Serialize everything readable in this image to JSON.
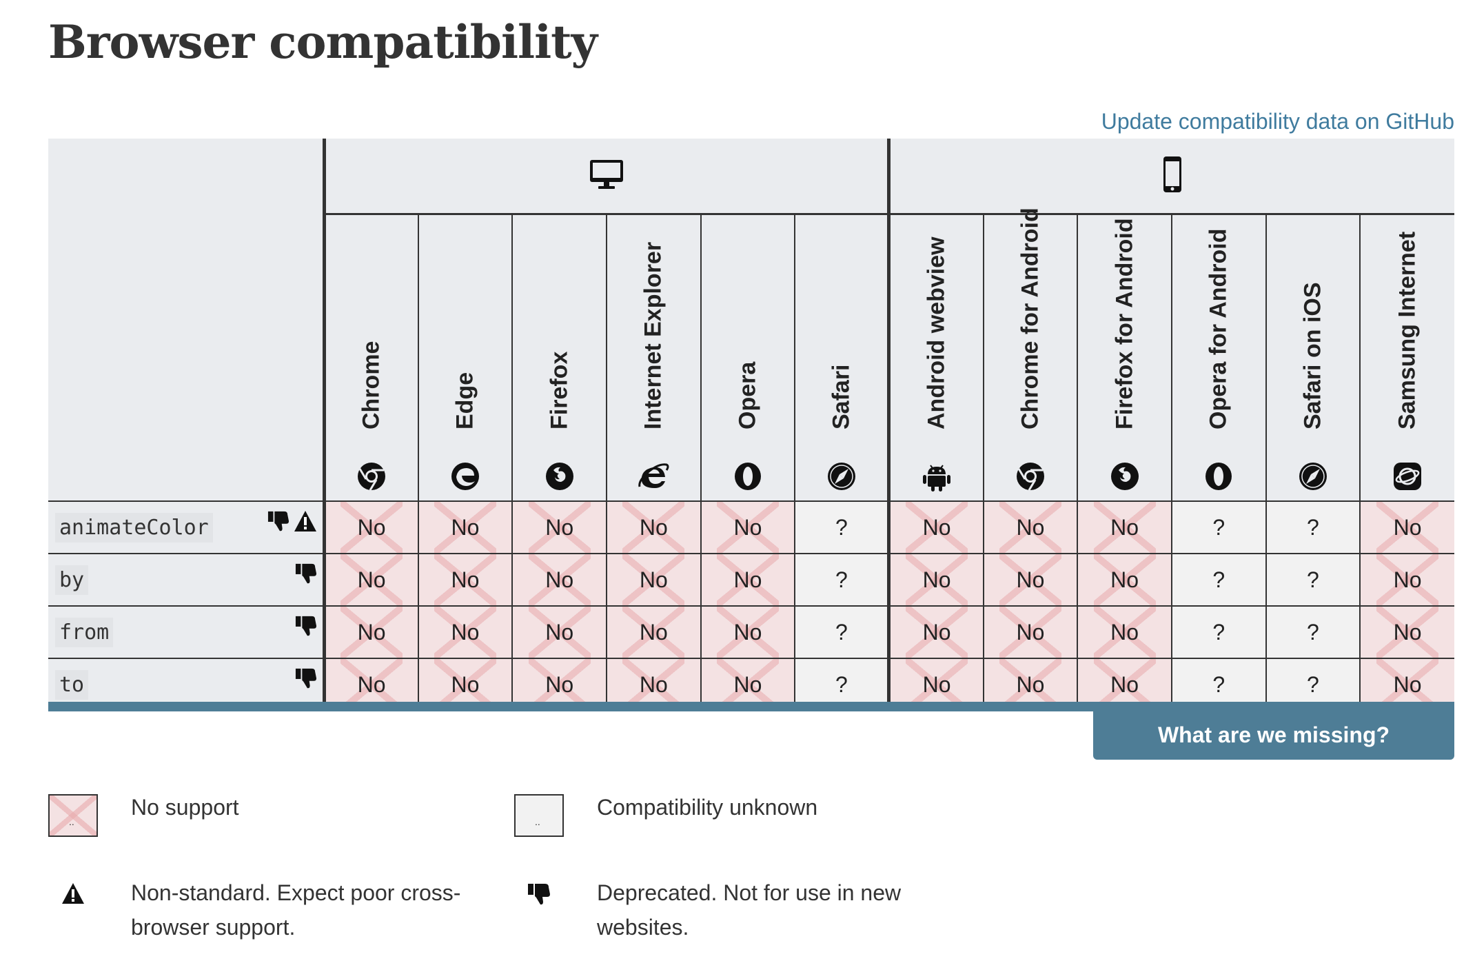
{
  "page": {
    "title": "Browser compatibility",
    "github_link": "Update compatibility data on GitHub",
    "missing_button": "What are we missing?"
  },
  "platforms": [
    {
      "name": "desktop",
      "icon": "desktop-monitor-icon"
    },
    {
      "name": "mobile",
      "icon": "mobile-phone-icon"
    }
  ],
  "browsers": [
    {
      "name": "Chrome",
      "icon": "chrome-icon"
    },
    {
      "name": "Edge",
      "icon": "edge-icon"
    },
    {
      "name": "Firefox",
      "icon": "firefox-icon"
    },
    {
      "name": "Internet Explorer",
      "icon": "internet-explorer-icon"
    },
    {
      "name": "Opera",
      "icon": "opera-icon"
    },
    {
      "name": "Safari",
      "icon": "safari-icon"
    },
    {
      "name": "Android webview",
      "icon": "android-icon"
    },
    {
      "name": "Chrome for Android",
      "icon": "chrome-icon"
    },
    {
      "name": "Firefox for Android",
      "icon": "firefox-icon"
    },
    {
      "name": "Opera for Android",
      "icon": "opera-icon"
    },
    {
      "name": "Safari on iOS",
      "icon": "safari-icon"
    },
    {
      "name": "Samsung Internet",
      "icon": "samsung-internet-icon"
    }
  ],
  "features": [
    {
      "name": "animateColor",
      "deprecated": true,
      "non_standard": true,
      "support": [
        "No",
        "No",
        "No",
        "No",
        "No",
        "?",
        "No",
        "No",
        "No",
        "?",
        "?",
        "No"
      ]
    },
    {
      "name": "by",
      "deprecated": true,
      "non_standard": false,
      "support": [
        "No",
        "No",
        "No",
        "No",
        "No",
        "?",
        "No",
        "No",
        "No",
        "?",
        "?",
        "No"
      ]
    },
    {
      "name": "from",
      "deprecated": true,
      "non_standard": false,
      "support": [
        "No",
        "No",
        "No",
        "No",
        "No",
        "?",
        "No",
        "No",
        "No",
        "?",
        "?",
        "No"
      ]
    },
    {
      "name": "to",
      "deprecated": true,
      "non_standard": false,
      "support": [
        "No",
        "No",
        "No",
        "No",
        "No",
        "?",
        "No",
        "No",
        "No",
        "?",
        "?",
        "No"
      ]
    }
  ],
  "legend": {
    "no_support": "No support",
    "unknown": "Compatibility unknown",
    "non_standard": "Non-standard. Expect poor cross-browser support.",
    "deprecated": "Deprecated. Not for use in new websites."
  },
  "colors": {
    "accent": "#4e7d96",
    "link": "#3f7b9e",
    "no_support_bg": "#f4e2e3",
    "unknown_bg": "#f2f2f2",
    "header_bg": "#eaecef"
  }
}
